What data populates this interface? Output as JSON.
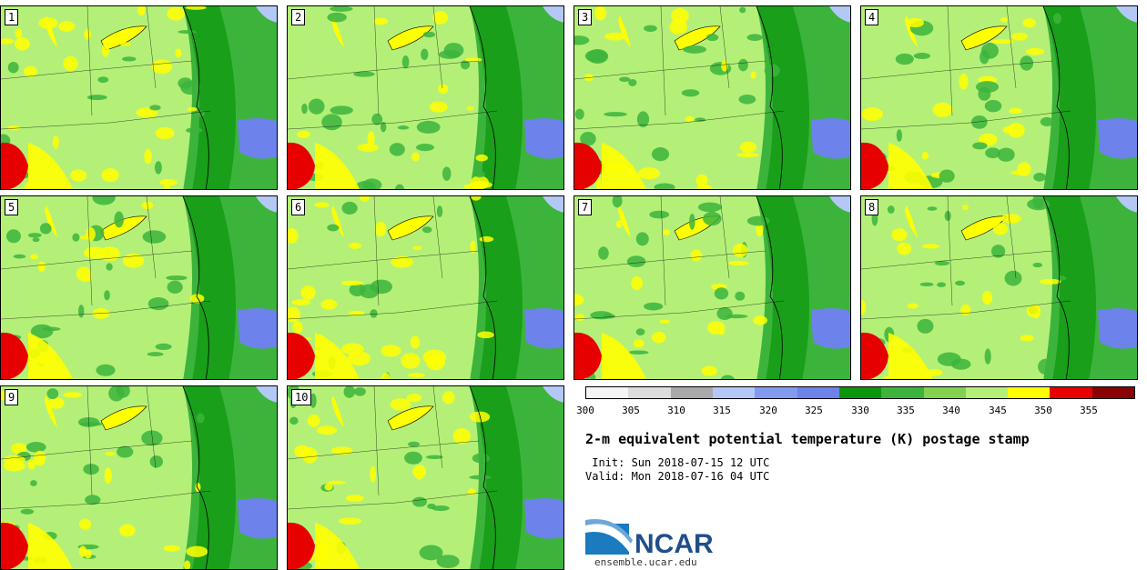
{
  "panels": [
    {
      "label": "1"
    },
    {
      "label": "2"
    },
    {
      "label": "3"
    },
    {
      "label": "4"
    },
    {
      "label": "5"
    },
    {
      "label": "6"
    },
    {
      "label": "7"
    },
    {
      "label": "8"
    },
    {
      "label": "9"
    },
    {
      "label": "10"
    }
  ],
  "colorbar": {
    "colors": [
      "#f5f5f5",
      "#dcdcdc",
      "#a9a9a9",
      "#b4c8f5",
      "#829bf0",
      "#6e82eb",
      "#0a960a",
      "#3cb43c",
      "#82d250",
      "#b4f078",
      "#ffff00",
      "#e60000",
      "#8b0000"
    ],
    "ticks": [
      "300",
      "305",
      "310",
      "315",
      "320",
      "325",
      "330",
      "335",
      "340",
      "345",
      "350",
      "355"
    ]
  },
  "title": "2-m equivalent potential temperature (K) postage stamp",
  "init_line": " Init: Sun 2018-07-15 12 UTC",
  "valid_line": "Valid: Mon 2018-07-16 04 UTC",
  "logo_text": "NCAR",
  "site": "ensemble.ucar.edu"
}
